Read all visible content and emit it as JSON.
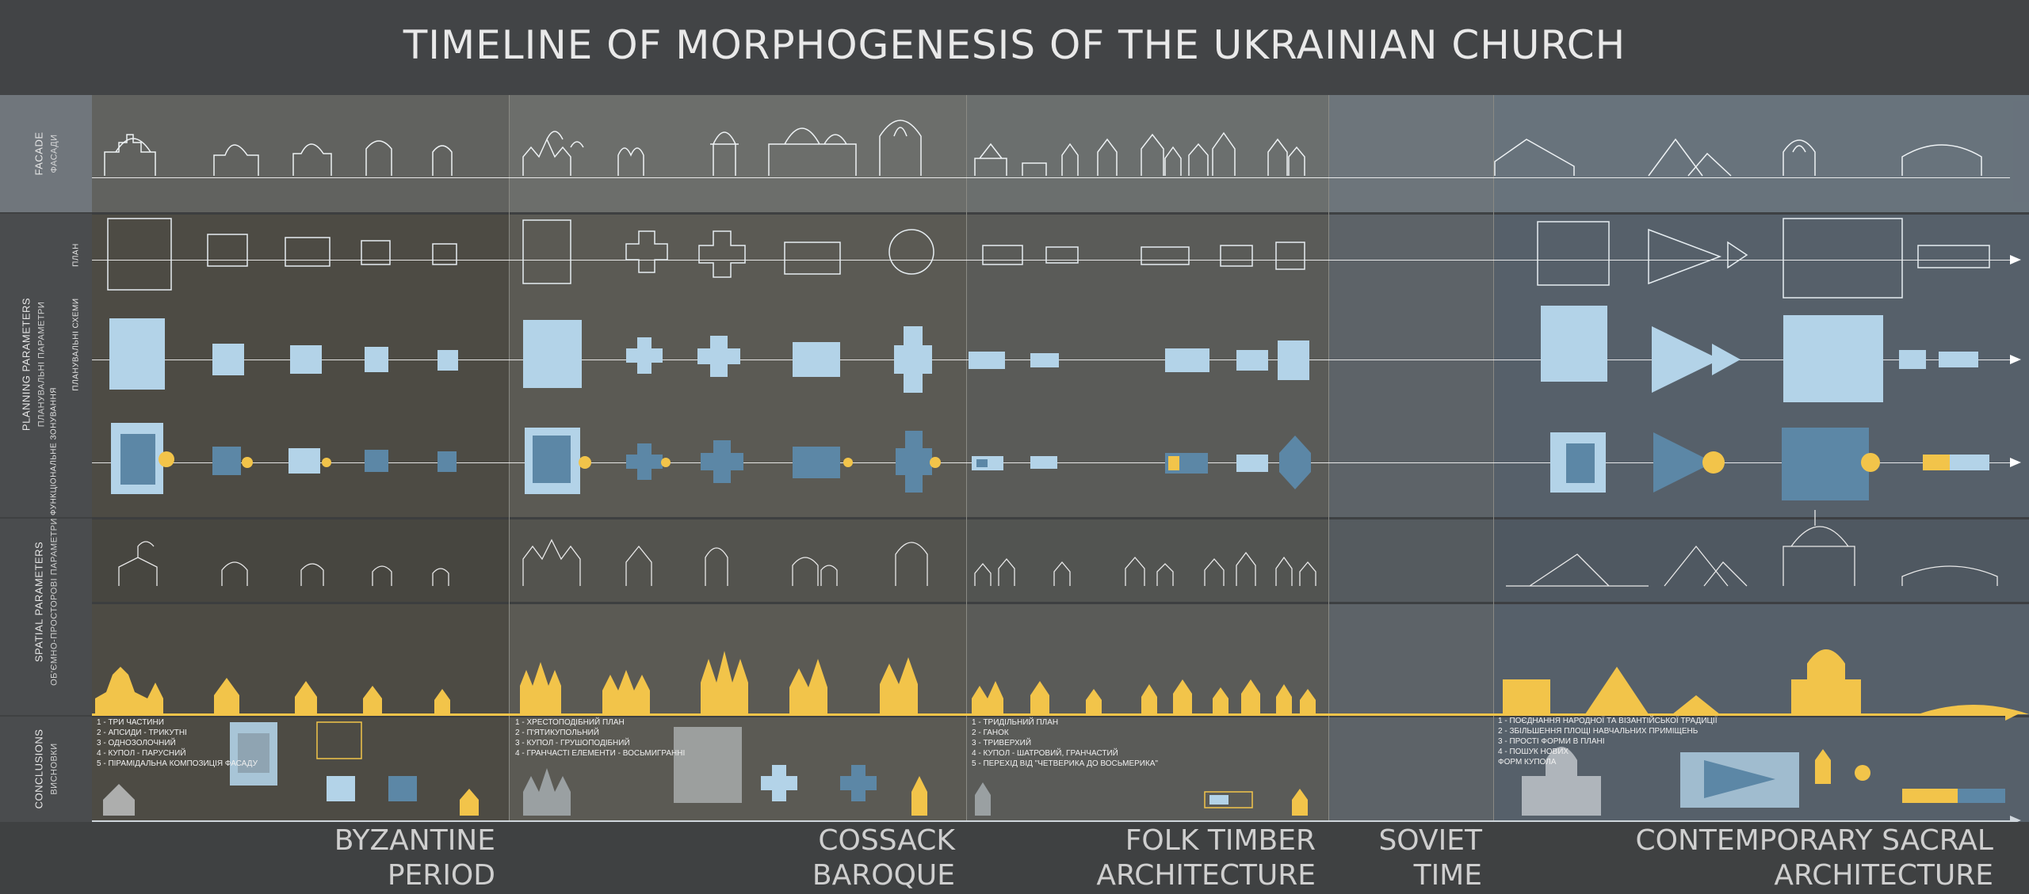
{
  "title": "TIMELINE OF MORPHOGENESIS OF THE UKRAINIAN CHURCH",
  "side_labels": {
    "facade": "FACADE",
    "facade_ua": "ФАСАДИ",
    "planning": "PLANNING PARAMETERS",
    "planning_ua": "ПЛАНУВАЛЬНІ ПАРАМЕТРИ",
    "plan_ua": "ПЛАН",
    "scheme_ua": "ПЛАНУВАЛЬНІ СХЕМИ",
    "zoning_ua": "ФУНКЦІОНАЛЬНЕ ЗОНУВАННЯ",
    "spatial": "SPATIAL PARAMETERS",
    "spatial_ua": "ОБ'ЄМНО-ПРОСТОРОВІ ПАРАМЕТРИ",
    "conclusions": "CONCLUSIONS",
    "conclusions_ua": "ВИСНОВКИ"
  },
  "periods": [
    {
      "id": "byzantine",
      "name": "BYZANTINE\nPERIOD"
    },
    {
      "id": "cossack",
      "name": "COSSACK\nBAROQUE"
    },
    {
      "id": "folk",
      "name": "FOLK TIMBER\nARCHITECTURE"
    },
    {
      "id": "soviet",
      "name": "SOVIET\nTIME"
    },
    {
      "id": "contemporary",
      "name": "CONTEMPORARY SACRAL\nARCHITECTURE"
    }
  ],
  "conclusions": {
    "byzantine": [
      "1 - ТРИ ЧАСТИНИ",
      "2 - АПСИДИ - ТРИКУТНІ",
      "3 - ОДНОЗОЛОЧНИЙ",
      "4 - КУПОЛ - ПАРУСНИЙ",
      "5 - ПІРАМІДАЛЬНА КОМПОЗИЦІЯ ФАСАДУ"
    ],
    "cossack": [
      "1 - ХРЕСТОПОДІБНИЙ ПЛАН",
      "2 - П'ЯТИКУПОЛЬНИЙ",
      "3 - КУПОЛ - ГРУШОПОДІБНИЙ",
      "4 - ГРАНЧАСТІ ЕЛЕМЕНТИ - ВОСЬМИГРАННІ"
    ],
    "folk": [
      "1 - ТРИДІЛЬНИЙ ПЛАН",
      "2 - ГАНОК",
      "3 - ТРИВЕРХИЙ",
      "4 - КУПОЛ - ШАТРОВИЙ, ГРАНЧАСТИЙ",
      "5 - ПЕРЕХІД ВІД \"ЧЕТВЕРИКА ДО ВОСЬМЕРИКА\""
    ],
    "contemporary": [
      "1 - ПОЄДНАННЯ НАРОДНОЇ ТА ВІЗАНТІЙСЬКОЇ ТРАДИЦІЇ",
      "2 - ЗБІЛЬШЕННЯ ПЛОЩІ НАВЧАЛЬНИХ ПРИМІЩЕНЬ",
      "3 - ПРОСТІ ФОРМИ В ПЛАНІ",
      "4 - ПОШУК НОВИХ",
      "ФОРМ КУПОЛА"
    ]
  },
  "colors": {
    "title_bar": "#424446",
    "byzantine_bg": "#4d4b44",
    "cossack_bg": "#5b5a54",
    "folk_bg": "#5a5b58",
    "soviet_bg": "#5d6368",
    "contemporary_bg": "#56606a",
    "facade_tint": "#6e7780",
    "light_blue": "#b3d3e8",
    "dark_blue": "#5c87a6",
    "yellow": "#f2c44a",
    "axis_yellow": "#f2c44a",
    "white": "#ffffff"
  }
}
